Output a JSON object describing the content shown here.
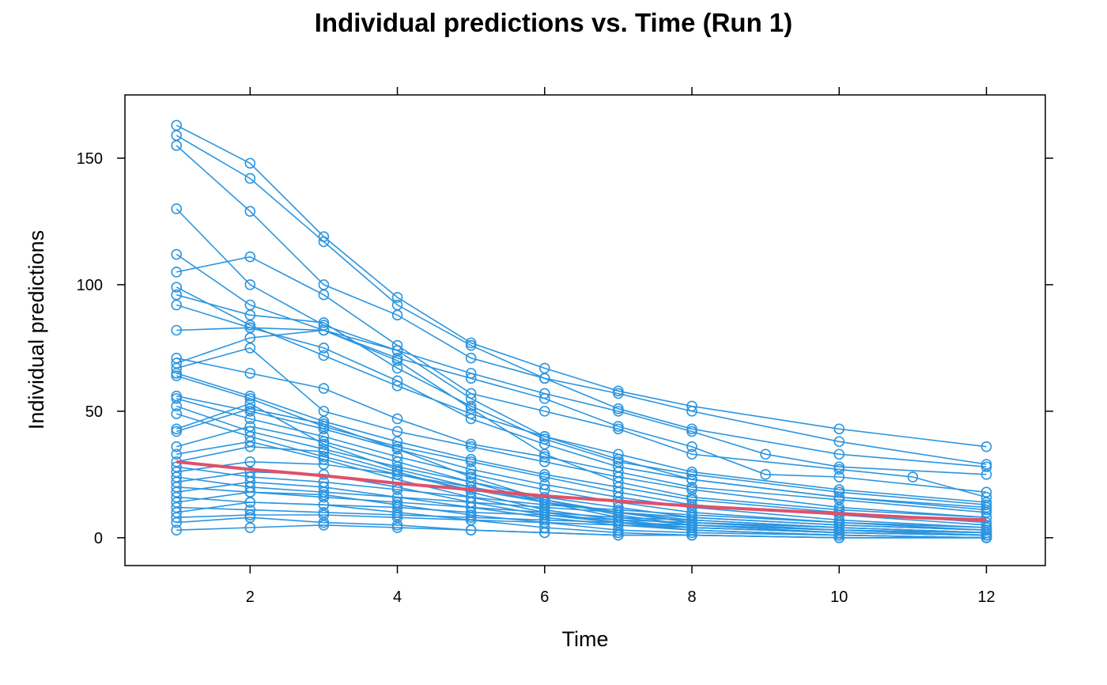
{
  "chart_data": {
    "type": "line",
    "title": "Individual predictions vs. Time (Run 1)",
    "xlabel": "Time",
    "ylabel": "Individual predictions",
    "xlim": [
      0.3,
      12.8
    ],
    "ylim": [
      -11,
      175
    ],
    "x_ticks": [
      2,
      4,
      6,
      8,
      10,
      12
    ],
    "y_ticks": [
      0,
      50,
      100,
      150
    ],
    "grid": false,
    "legend": "none",
    "colors": {
      "series": "#2B95E0",
      "trend": "#E0506A"
    },
    "series": [
      {
        "x": [
          1,
          2,
          3,
          4,
          5,
          6,
          7,
          8,
          10,
          12
        ],
        "y": [
          163,
          148,
          119,
          95,
          77,
          67,
          58,
          52,
          43,
          36
        ]
      },
      {
        "x": [
          1,
          2,
          3,
          4,
          5,
          6,
          7,
          8,
          10,
          12
        ],
        "y": [
          159,
          142,
          117,
          92,
          76,
          63,
          57,
          50,
          38,
          29
        ]
      },
      {
        "x": [
          1,
          2,
          3,
          4,
          5,
          6,
          7,
          8,
          10,
          12
        ],
        "y": [
          155,
          129,
          100,
          88,
          71,
          63,
          51,
          43,
          33,
          28
        ]
      },
      {
        "x": [
          1,
          2,
          3,
          4,
          5,
          6,
          7,
          8,
          9,
          10,
          12
        ],
        "y": [
          130,
          100,
          84,
          74,
          65,
          57,
          50,
          42,
          33,
          28,
          25
        ]
      },
      {
        "x": [
          1,
          2,
          3,
          4,
          5,
          6,
          7,
          8,
          9,
          10,
          12
        ],
        "y": [
          112,
          92,
          82,
          71,
          63,
          55,
          44,
          36,
          25,
          24,
          18
        ]
      },
      {
        "x": [
          1,
          2,
          3,
          4,
          5,
          6,
          7,
          8,
          10,
          11,
          12
        ],
        "y": [
          105,
          111,
          96,
          76,
          57,
          50,
          43,
          33,
          27,
          24,
          16
        ]
      },
      {
        "x": [
          1,
          2,
          3,
          4,
          5,
          6,
          7,
          8,
          10,
          12
        ],
        "y": [
          99,
          84,
          72,
          60,
          49,
          40,
          33,
          26,
          19,
          14
        ]
      },
      {
        "x": [
          1,
          2,
          3,
          4,
          5,
          6,
          7,
          8,
          10,
          12
        ],
        "y": [
          96,
          88,
          85,
          67,
          52,
          39,
          30,
          25,
          18,
          13
        ]
      },
      {
        "x": [
          1,
          2,
          3,
          4,
          5,
          6,
          7,
          8,
          10,
          12
        ],
        "y": [
          92,
          83,
          75,
          62,
          47,
          37,
          28,
          23,
          16,
          12
        ]
      },
      {
        "x": [
          1,
          2,
          3,
          4,
          5,
          6,
          7,
          8,
          10,
          12
        ],
        "y": [
          82,
          83,
          82,
          74,
          55,
          40,
          31,
          23,
          16,
          11
        ]
      },
      {
        "x": [
          1,
          2,
          3,
          4,
          5,
          6,
          7,
          8,
          10,
          12
        ],
        "y": [
          71,
          65,
          59,
          47,
          37,
          32,
          26,
          20,
          15,
          10
        ]
      },
      {
        "x": [
          1,
          2,
          3,
          4,
          5,
          6,
          7,
          8,
          10,
          12
        ],
        "y": [
          69,
          79,
          82,
          70,
          51,
          33,
          22,
          16,
          11,
          8
        ]
      },
      {
        "x": [
          1,
          2,
          3,
          4,
          5,
          6,
          7,
          8,
          10,
          12
        ],
        "y": [
          67,
          75,
          50,
          42,
          36,
          30,
          24,
          19,
          12,
          8
        ]
      },
      {
        "x": [
          1,
          2,
          3,
          4,
          5,
          6,
          7,
          8,
          10,
          12
        ],
        "y": [
          65,
          56,
          46,
          38,
          31,
          25,
          20,
          15,
          10,
          6
        ]
      },
      {
        "x": [
          1,
          2,
          3,
          4,
          5,
          6,
          7,
          8,
          10,
          12
        ],
        "y": [
          64,
          55,
          44,
          36,
          30,
          24,
          18,
          13,
          9,
          5
        ]
      },
      {
        "x": [
          1,
          2,
          3,
          4,
          5,
          6,
          7,
          8,
          10,
          12
        ],
        "y": [
          56,
          50,
          43,
          35,
          27,
          21,
          16,
          12,
          7,
          4
        ]
      },
      {
        "x": [
          1,
          2,
          3,
          4,
          5,
          6,
          7,
          8,
          10,
          12
        ],
        "y": [
          55,
          47,
          40,
          32,
          25,
          19,
          14,
          10,
          6,
          3
        ]
      },
      {
        "x": [
          1,
          2,
          3,
          4,
          5,
          6,
          7,
          8,
          10,
          12
        ],
        "y": [
          52,
          42,
          35,
          28,
          22,
          16,
          12,
          8,
          5,
          3
        ]
      },
      {
        "x": [
          1,
          2,
          3,
          4,
          5,
          6,
          7,
          8,
          10,
          12
        ],
        "y": [
          49,
          40,
          32,
          25,
          19,
          14,
          10,
          7,
          4,
          2
        ]
      },
      {
        "x": [
          1,
          2,
          3,
          4,
          5,
          6,
          7,
          8,
          10,
          12
        ],
        "y": [
          43,
          53,
          37,
          27,
          20,
          15,
          10,
          6,
          3,
          2
        ]
      },
      {
        "x": [
          1,
          2,
          3,
          4,
          5,
          6,
          7,
          8,
          10,
          12
        ],
        "y": [
          42,
          51,
          45,
          35,
          24,
          15,
          9,
          5,
          3,
          1
        ]
      },
      {
        "x": [
          1,
          2,
          3,
          4,
          5,
          6,
          7,
          8,
          10,
          12
        ],
        "y": [
          36,
          44,
          38,
          30,
          22,
          14,
          8,
          5,
          2,
          1
        ]
      },
      {
        "x": [
          1,
          2,
          3,
          4,
          5,
          6,
          7,
          8,
          10,
          12
        ],
        "y": [
          33,
          38,
          31,
          23,
          16,
          10,
          6,
          4,
          2,
          1
        ]
      },
      {
        "x": [
          1,
          2,
          3,
          4,
          5,
          6,
          7,
          8,
          10,
          12
        ],
        "y": [
          30,
          36,
          34,
          26,
          18,
          11,
          7,
          4,
          2,
          1
        ]
      },
      {
        "x": [
          1,
          2,
          3,
          4,
          5,
          6,
          7,
          8,
          10,
          12
        ],
        "y": [
          28,
          24,
          22,
          19,
          16,
          13,
          11,
          9,
          6,
          4
        ]
      },
      {
        "x": [
          1,
          2,
          3,
          4,
          5,
          6,
          7,
          8,
          10,
          12
        ],
        "y": [
          26,
          30,
          29,
          25,
          20,
          14,
          10,
          6,
          3,
          1
        ]
      },
      {
        "x": [
          1,
          2,
          3,
          4,
          5,
          6,
          7,
          8,
          10,
          12
        ],
        "y": [
          24,
          20,
          18,
          16,
          14,
          12,
          10,
          8,
          5,
          3
        ]
      },
      {
        "x": [
          1,
          2,
          3,
          4,
          5,
          6,
          7,
          8,
          10,
          12
        ],
        "y": [
          22,
          26,
          25,
          20,
          14,
          9,
          6,
          3,
          1,
          0
        ]
      },
      {
        "x": [
          1,
          2,
          3,
          4,
          5,
          6,
          7,
          8,
          10,
          12
        ],
        "y": [
          20,
          18,
          16,
          14,
          12,
          10,
          8,
          7,
          4,
          2
        ]
      },
      {
        "x": [
          1,
          2,
          3,
          4,
          5,
          6,
          7,
          8,
          10,
          12
        ],
        "y": [
          18,
          22,
          20,
          16,
          12,
          8,
          5,
          3,
          1,
          0
        ]
      },
      {
        "x": [
          1,
          2,
          3,
          4,
          5,
          6,
          7,
          8,
          10,
          12
        ],
        "y": [
          16,
          14,
          13,
          12,
          10,
          9,
          7,
          6,
          4,
          2
        ]
      },
      {
        "x": [
          1,
          2,
          3,
          4,
          5,
          6,
          7,
          8,
          10,
          12
        ],
        "y": [
          14,
          18,
          17,
          13,
          9,
          6,
          3,
          2,
          1,
          0
        ]
      },
      {
        "x": [
          1,
          2,
          3,
          4,
          5,
          6,
          7,
          8,
          10,
          12
        ],
        "y": [
          12,
          11,
          10,
          9,
          8,
          7,
          6,
          5,
          3,
          2
        ]
      },
      {
        "x": [
          1,
          2,
          3,
          4,
          5,
          6,
          7,
          8,
          10,
          12
        ],
        "y": [
          10,
          14,
          13,
          10,
          7,
          4,
          2,
          1,
          0,
          0
        ]
      },
      {
        "x": [
          1,
          2,
          3,
          4,
          5,
          6,
          7,
          8,
          10,
          12
        ],
        "y": [
          8,
          9,
          9,
          8,
          7,
          6,
          5,
          4,
          2,
          1
        ]
      },
      {
        "x": [
          1,
          2,
          3,
          4,
          5,
          6,
          7,
          8,
          10,
          12
        ],
        "y": [
          6,
          8,
          6,
          5,
          3,
          2,
          1,
          1,
          0,
          0
        ]
      },
      {
        "x": [
          1,
          2,
          3,
          4,
          5,
          6,
          7,
          8,
          10,
          12
        ],
        "y": [
          3,
          4,
          5,
          4,
          3,
          2,
          1,
          1,
          0,
          0
        ]
      }
    ],
    "trend": {
      "x": [
        1,
        2,
        3,
        4,
        5,
        6,
        7,
        8,
        9,
        10,
        11,
        12
      ],
      "y": [
        30,
        27,
        24.5,
        21.5,
        19,
        16.5,
        14.5,
        12.5,
        11,
        9.5,
        8,
        7
      ]
    }
  }
}
